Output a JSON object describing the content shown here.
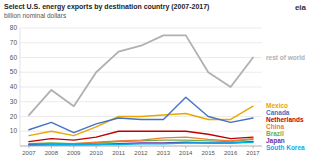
{
  "chart_data": {
    "type": "line",
    "title": "Select U.S. energy exports by destination country (2007-2017)",
    "subtitle": "billion nominal dollars",
    "annotations": [
      {
        "text": "eia"
      }
    ],
    "x": [
      2007,
      2008,
      2009,
      2010,
      2011,
      2012,
      2013,
      2014,
      2015,
      2016,
      2017
    ],
    "series": [
      {
        "name": "rest of world",
        "color": "#b0b0b0",
        "values": [
          21,
          38,
          27,
          50,
          64,
          68,
          75,
          75,
          50,
          40,
          60
        ]
      },
      {
        "name": "Mexico",
        "color": "#e8a800",
        "values": [
          7,
          10,
          7,
          13,
          20,
          20,
          21,
          22,
          18,
          18,
          27
        ]
      },
      {
        "name": "Canada",
        "color": "#4472c4",
        "values": [
          11,
          16,
          9,
          15,
          19,
          18,
          18,
          33,
          20,
          16,
          19
        ]
      },
      {
        "name": "Brazil",
        "color": "#70ad47",
        "values": [
          1.5,
          2,
          1.5,
          2,
          3,
          3.5,
          4,
          4,
          3.5,
          3,
          4.5
        ]
      },
      {
        "name": "China",
        "color": "#ed7d31",
        "values": [
          1,
          1.5,
          1.5,
          2.5,
          3.5,
          4,
          5.5,
          6,
          4.5,
          3.5,
          5
        ]
      },
      {
        "name": "Netherlands",
        "color": "#c00000",
        "values": [
          3,
          5,
          4,
          6,
          10,
          10,
          10,
          10,
          8,
          5,
          6
        ]
      },
      {
        "name": "Japan",
        "color": "#7030a0",
        "values": [
          1,
          1,
          1,
          1,
          1.5,
          2,
          2,
          2.5,
          2,
          2,
          3
        ]
      },
      {
        "name": "South Korea",
        "color": "#00b0f0",
        "values": [
          0.5,
          0.8,
          0.8,
          1,
          1,
          1.5,
          1.5,
          2,
          2,
          2,
          2.5
        ]
      }
    ],
    "xlim": [
      2006.6,
      2017.4
    ],
    "xticks": [
      2007,
      2008,
      2009,
      2010,
      2011,
      2012,
      2013,
      2014,
      2015,
      2016,
      2017
    ],
    "ylim": [
      0,
      80
    ],
    "yticks": [
      10,
      20,
      30,
      40,
      50,
      60,
      70,
      80
    ],
    "grid": true
  }
}
